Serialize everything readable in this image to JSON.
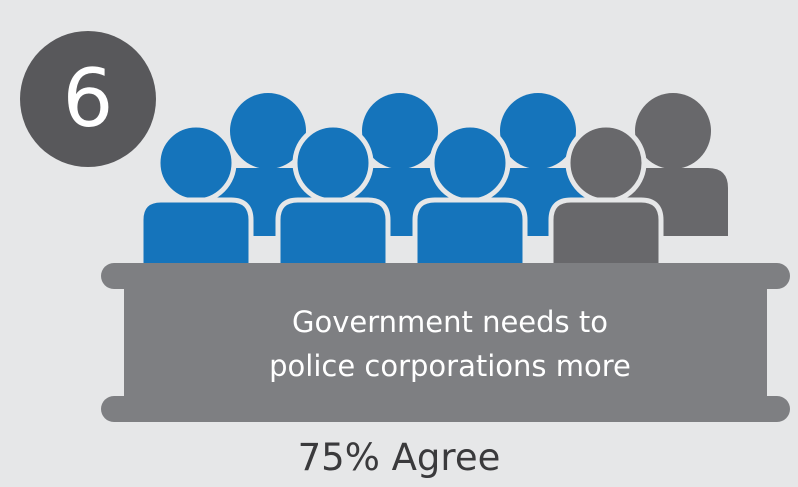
{
  "badge": {
    "number": "6"
  },
  "statement": {
    "line1": "Government needs to",
    "line2": "police corporations more"
  },
  "result": {
    "label": "75% Agree"
  },
  "agree_fraction": 0.75,
  "colors": {
    "background": "#e6e7e8",
    "agree": "#1574bb",
    "disagree": "#68686b",
    "panel": "#7e7f82",
    "badge": "#58585b",
    "text_dark": "#3a3a3c"
  }
}
